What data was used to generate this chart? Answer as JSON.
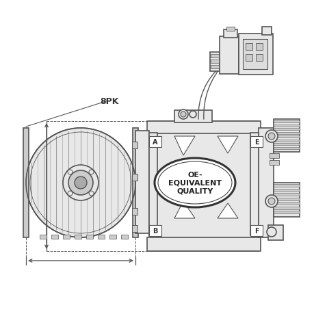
{
  "bg_color": "#ffffff",
  "line_color": "#555555",
  "line_width": 1.2,
  "fill_light": "#e8e8e8",
  "fill_mid": "#cccccc",
  "fill_dark": "#aaaaaa",
  "fill_darker": "#888888",
  "label_8pk": "8PK",
  "label_oe": "OE-\nEQUIVALENT\nQUALITY",
  "label_A": "A",
  "label_B": "B",
  "label_E": "E",
  "label_F": "F",
  "figsize": [
    4.6,
    4.6
  ],
  "dpi": 100
}
